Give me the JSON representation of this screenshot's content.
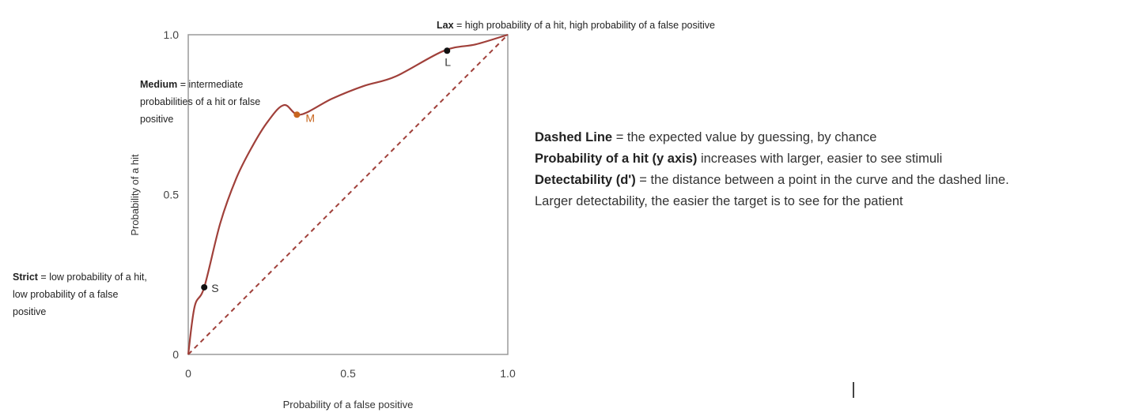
{
  "chart_data": {
    "type": "line",
    "xlabel": "Probability of a false positive",
    "ylabel": "Probability of a hit",
    "xlim": [
      0,
      1
    ],
    "ylim": [
      0,
      1
    ],
    "x_ticks": [
      "0",
      "0.5",
      "1.0"
    ],
    "y_ticks": [
      "0",
      "0.5",
      "1.0"
    ],
    "grid": false,
    "series": [
      {
        "x": [
          0,
          0.02,
          0.05,
          0.1,
          0.15,
          0.2,
          0.25,
          0.3,
          0.35,
          0.45,
          0.55,
          0.65,
          0.8,
          0.9,
          1.0
        ],
        "y": [
          0,
          0.15,
          0.21,
          0.41,
          0.55,
          0.65,
          0.73,
          0.78,
          0.75,
          0.8,
          0.84,
          0.87,
          0.95,
          0.97,
          1.0
        ],
        "color": "#a0403a",
        "style": "solid"
      },
      {
        "x": [
          0,
          1
        ],
        "y": [
          0,
          1
        ],
        "color": "#a0403a",
        "style": "dashed"
      }
    ],
    "points": [
      {
        "label": "S",
        "x": 0.05,
        "y": 0.21,
        "color": "#111111"
      },
      {
        "label": "M",
        "x": 0.34,
        "y": 0.75,
        "color": "#c8651e"
      },
      {
        "label": "L",
        "x": 0.81,
        "y": 0.95,
        "color": "#111111"
      }
    ],
    "annotations": [
      {
        "id": "lax",
        "term": "Lax",
        "text": " = high probability of a hit, high probability of a false positive"
      },
      {
        "id": "medium",
        "term": "Medium",
        "text_lines": [
          " = intermediate",
          "probabilities of a hit or false",
          "positive"
        ]
      },
      {
        "id": "strict",
        "term": "Strict",
        "text_lines": [
          " = low probability of a hit,",
          "low probability of a false",
          "positive"
        ]
      }
    ]
  },
  "notes": [
    {
      "term": "Dashed Line",
      "text": " = the expected value by guessing, by chance"
    },
    {
      "term": "Probability of a hit (y axis)",
      "text": " increases with larger, easier to see stimuli"
    },
    {
      "term": "Detectability (d')",
      "text": " = the distance between a point in the curve and the dashed line."
    },
    {
      "term": "",
      "text": "Larger detectability, the easier the target is to see for the patient"
    }
  ]
}
